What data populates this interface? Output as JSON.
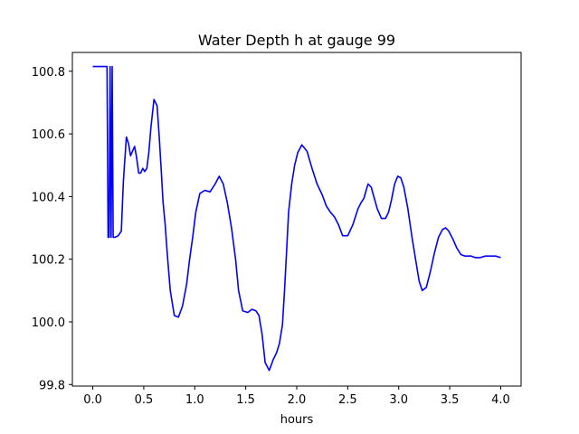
{
  "chart_data": {
    "type": "line",
    "title": "Water Depth h at gauge 99",
    "xlabel": "hours",
    "ylabel": "",
    "xlim": [
      -0.2,
      4.2
    ],
    "ylim": [
      99.795,
      100.86
    ],
    "xticks": [
      0.0,
      0.5,
      1.0,
      1.5,
      2.0,
      2.5,
      3.0,
      3.5,
      4.0
    ],
    "xtick_labels": [
      "0.0",
      "0.5",
      "1.0",
      "1.5",
      "2.0",
      "2.5",
      "3.0",
      "3.5",
      "4.0"
    ],
    "yticks": [
      99.8,
      100.0,
      100.2,
      100.4,
      100.6,
      100.8
    ],
    "ytick_labels": [
      "99.8",
      "100.0",
      "100.2",
      "100.4",
      "100.6",
      "100.8"
    ],
    "grid": false,
    "legend": "none",
    "series": [
      {
        "color": "#0000ff",
        "x": [
          0.0,
          0.14,
          0.15,
          0.16,
          0.17,
          0.18,
          0.19,
          0.2,
          0.22,
          0.25,
          0.28,
          0.3,
          0.33,
          0.35,
          0.37,
          0.39,
          0.41,
          0.43,
          0.45,
          0.47,
          0.49,
          0.51,
          0.53,
          0.55,
          0.57,
          0.6,
          0.63,
          0.65,
          0.67,
          0.69,
          0.71,
          0.73,
          0.76,
          0.8,
          0.84,
          0.88,
          0.92,
          0.95,
          0.98,
          1.01,
          1.05,
          1.1,
          1.15,
          1.2,
          1.24,
          1.28,
          1.32,
          1.36,
          1.4,
          1.43,
          1.47,
          1.52,
          1.56,
          1.6,
          1.63,
          1.66,
          1.69,
          1.73,
          1.77,
          1.8,
          1.83,
          1.86,
          1.88,
          1.9,
          1.92,
          1.95,
          1.98,
          2.01,
          2.05,
          2.1,
          2.15,
          2.2,
          2.25,
          2.29,
          2.33,
          2.37,
          2.41,
          2.45,
          2.5,
          2.55,
          2.6,
          2.63,
          2.66,
          2.68,
          2.7,
          2.73,
          2.76,
          2.79,
          2.83,
          2.87,
          2.9,
          2.93,
          2.96,
          2.99,
          3.02,
          3.05,
          3.09,
          3.13,
          3.17,
          3.2,
          3.23,
          3.27,
          3.31,
          3.35,
          3.39,
          3.43,
          3.46,
          3.49,
          3.53,
          3.57,
          3.61,
          3.65,
          3.68,
          3.71,
          3.75,
          3.8,
          3.85,
          3.9,
          3.95,
          4.0
        ],
        "y": [
          100.815,
          100.815,
          100.27,
          100.27,
          100.815,
          100.27,
          100.815,
          100.27,
          100.27,
          100.275,
          100.29,
          100.45,
          100.59,
          100.57,
          100.53,
          100.545,
          100.56,
          100.525,
          100.475,
          100.475,
          100.49,
          100.48,
          100.49,
          100.54,
          100.62,
          100.71,
          100.69,
          100.6,
          100.49,
          100.38,
          100.31,
          100.22,
          100.1,
          100.02,
          100.015,
          100.05,
          100.12,
          100.2,
          100.27,
          100.35,
          100.41,
          100.42,
          100.415,
          100.44,
          100.465,
          100.44,
          100.38,
          100.3,
          100.2,
          100.1,
          100.035,
          100.03,
          100.04,
          100.035,
          100.02,
          99.96,
          99.87,
          99.845,
          99.88,
          99.9,
          99.93,
          99.99,
          100.1,
          100.22,
          100.35,
          100.44,
          100.5,
          100.54,
          100.565,
          100.545,
          100.49,
          100.44,
          100.405,
          100.37,
          100.35,
          100.335,
          100.31,
          100.275,
          100.275,
          100.31,
          100.36,
          100.38,
          100.395,
          100.42,
          100.44,
          100.43,
          100.395,
          100.36,
          100.33,
          100.33,
          100.35,
          100.39,
          100.44,
          100.465,
          100.46,
          100.43,
          100.36,
          100.27,
          100.19,
          100.13,
          100.1,
          100.11,
          100.16,
          100.22,
          100.27,
          100.295,
          100.3,
          100.29,
          100.265,
          100.235,
          100.215,
          100.21,
          100.21,
          100.21,
          100.205,
          100.205,
          100.21,
          100.21,
          100.21,
          100.205
        ]
      }
    ]
  }
}
